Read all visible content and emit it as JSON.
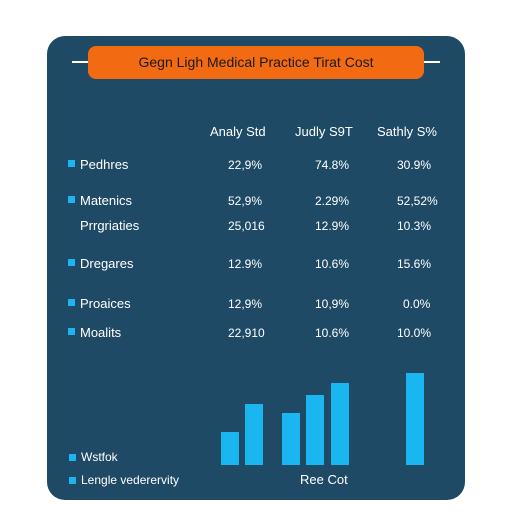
{
  "title": "Gegn Ligh Medical Practice Tirat Cost",
  "colors": {
    "card": "#1f4a66",
    "accent": "#f26a12",
    "bar": "#19b6f0",
    "text": "#ffffff"
  },
  "table": {
    "columns": [
      "Analy Std",
      "Judly S9T",
      "Sathly S%"
    ],
    "rows": [
      {
        "label": "Pedhres",
        "bullet": true,
        "values": [
          "22,9%",
          "74.8%",
          "30.9%"
        ]
      },
      {
        "label": "Matenics",
        "bullet": true,
        "values": [
          "52,9%",
          "2.29%",
          "52,52%"
        ]
      },
      {
        "label": "Prrgriaties",
        "bullet": false,
        "values": [
          "25,016",
          "12.9%",
          "10.3%"
        ]
      },
      {
        "label": "Dregares",
        "bullet": true,
        "values": [
          "12.9%",
          "10.6%",
          "15.6%"
        ]
      },
      {
        "label": "Proaices",
        "bullet": true,
        "values": [
          "12,9%",
          "10,9%",
          "0.0%"
        ]
      },
      {
        "label": "Moalits",
        "bullet": true,
        "values": [
          "22,910",
          "10.6%",
          "10.0%"
        ]
      }
    ]
  },
  "chart_data": {
    "type": "bar",
    "title": "",
    "xlabel": "Ree Cot",
    "ylabel": "",
    "series": [
      {
        "values": [
          33,
          61,
          52,
          70,
          82,
          92
        ]
      }
    ],
    "ylim": [
      0,
      100
    ],
    "grid": false
  },
  "legend": [
    {
      "label": "Wstfok"
    },
    {
      "label": "Lengle vederervity"
    }
  ]
}
